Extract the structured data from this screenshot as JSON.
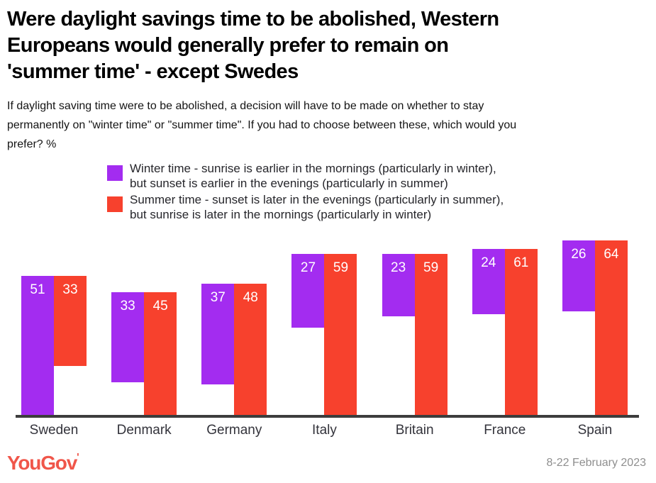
{
  "header": {
    "title_lines": [
      "Were daylight savings time to be abolished, Western",
      "Europeans would generally prefer to remain on",
      "'summer time' - except Swedes"
    ],
    "subtitle_lines": [
      "If daylight saving time were to be abolished, a decision will have to be made on whether to stay",
      "permanently on \"winter time\" or \"summer time\". If you had to choose between these, which would you",
      "prefer? %"
    ]
  },
  "legend": [
    {
      "name": "Winter time",
      "color": "#a32cf0",
      "lines": [
        "Winter time - sunrise is earlier in the mornings (particularly in winter),",
        "but sunset is earlier in the evenings (particularly in summer)"
      ]
    },
    {
      "name": "Summer time",
      "color": "#f7412d",
      "lines": [
        "Summer time - sunset is later in the evenings (particularly in summer),",
        "but sunrise is later in the mornings (particularly in winter)"
      ]
    }
  ],
  "chart_data": {
    "type": "bar",
    "title": "Were daylight savings time to be abolished, Western Europeans would generally prefer to remain on 'summer time' - except Swedes",
    "categories": [
      "Sweden",
      "Denmark",
      "Germany",
      "Italy",
      "Britain",
      "France",
      "Spain"
    ],
    "series": [
      {
        "name": "Winter time",
        "color": "#a32cf0",
        "values": [
          51,
          33,
          37,
          27,
          23,
          24,
          26
        ]
      },
      {
        "name": "Summer time",
        "color": "#f7412d",
        "values": [
          33,
          45,
          48,
          59,
          59,
          61,
          64
        ]
      }
    ],
    "xlabel": "",
    "ylabel": "%",
    "ylim": [
      0,
      64
    ],
    "grid": false,
    "legend_position": "top",
    "value_label_position": "inside-top",
    "axis_color": "#3d3d3d"
  },
  "footer": {
    "logo_text": "YouGov",
    "logo_mark": "'",
    "logo_color": "#f0564a",
    "date_range": "8-22 February 2023"
  }
}
